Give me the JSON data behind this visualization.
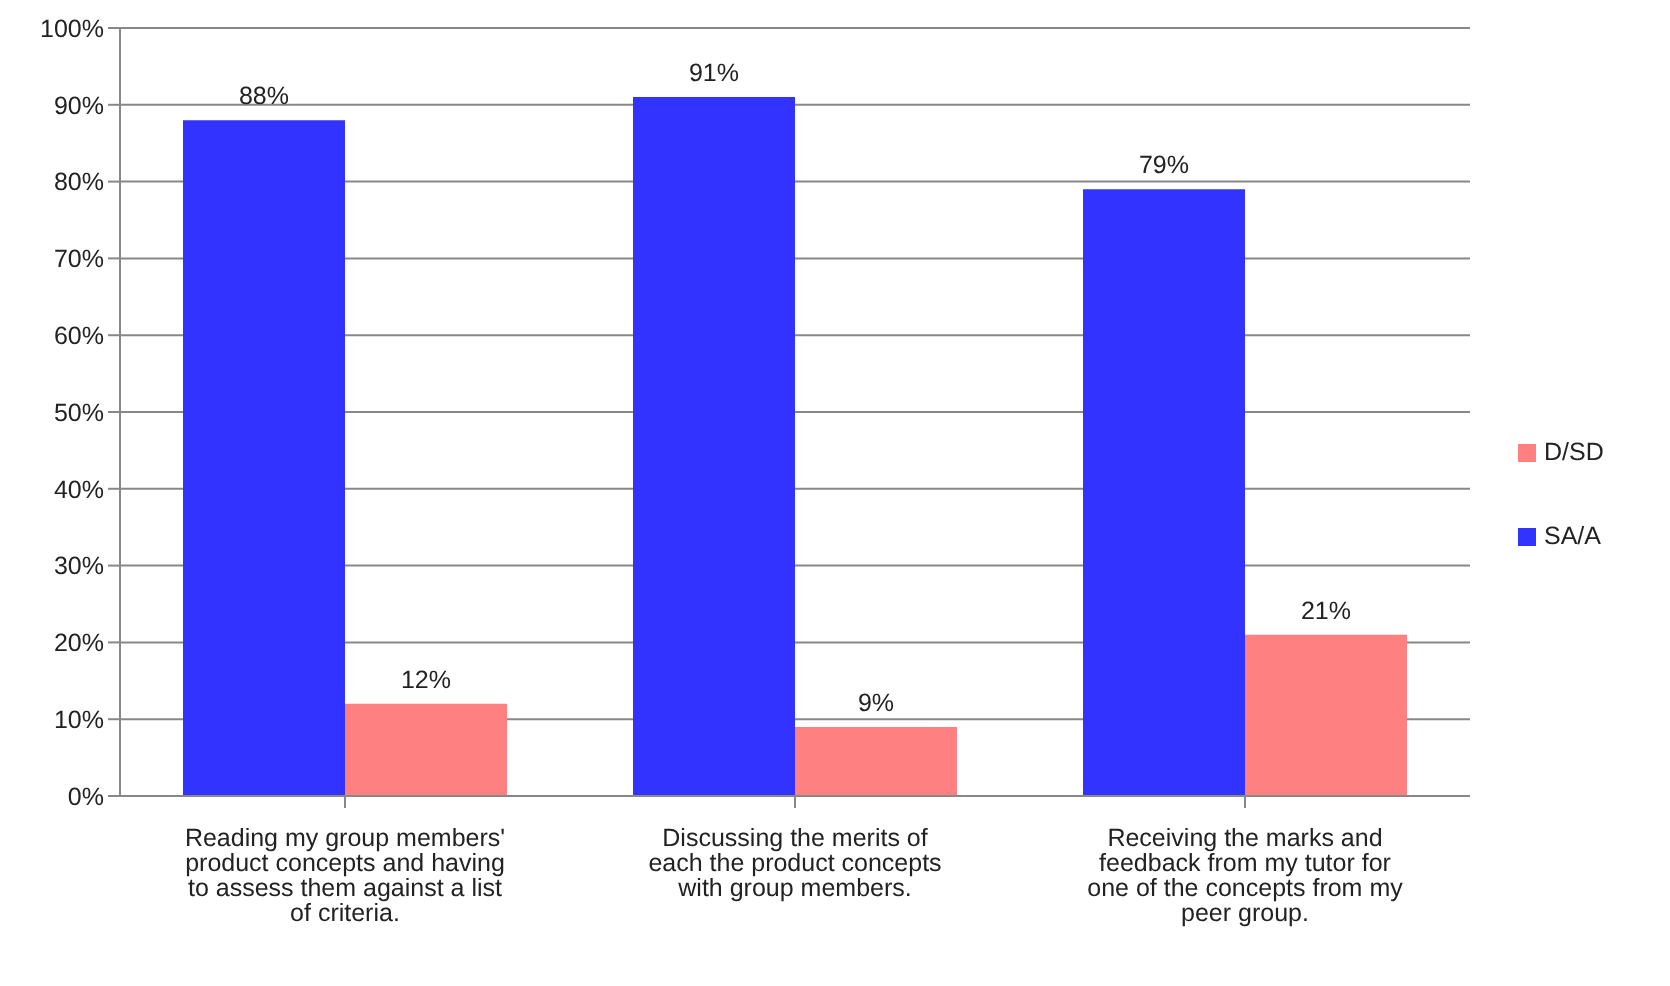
{
  "chart_data": {
    "type": "bar",
    "categories": [
      "Reading my group members' product concepts and having to assess them against a list of criteria.",
      "Discussing the merits of each the product concepts with group members.",
      "Receiving the marks and feedback from my tutor for one of the concepts from my peer group."
    ],
    "series": [
      {
        "name": "SA/A",
        "color": "#3333ff",
        "values": [
          88,
          91,
          79
        ],
        "value_labels": [
          "88%",
          "91%",
          "79%"
        ]
      },
      {
        "name": "D/SD",
        "color": "#ff8080",
        "values": [
          12,
          9,
          21
        ],
        "value_labels": [
          "12%",
          "9%",
          "21%"
        ]
      }
    ],
    "ylim": [
      0,
      100
    ],
    "yticks": [
      {
        "value": 0,
        "label": "0%"
      },
      {
        "value": 10,
        "label": "10%"
      },
      {
        "value": 20,
        "label": "20%"
      },
      {
        "value": 30,
        "label": "30%"
      },
      {
        "value": 40,
        "label": "40%"
      },
      {
        "value": 50,
        "label": "50%"
      },
      {
        "value": 60,
        "label": "60%"
      },
      {
        "value": 70,
        "label": "70%"
      },
      {
        "value": 80,
        "label": "80%"
      },
      {
        "value": 90,
        "label": "90%"
      },
      {
        "value": 100,
        "label": "100%"
      }
    ],
    "grid": "y",
    "legend": "right"
  }
}
